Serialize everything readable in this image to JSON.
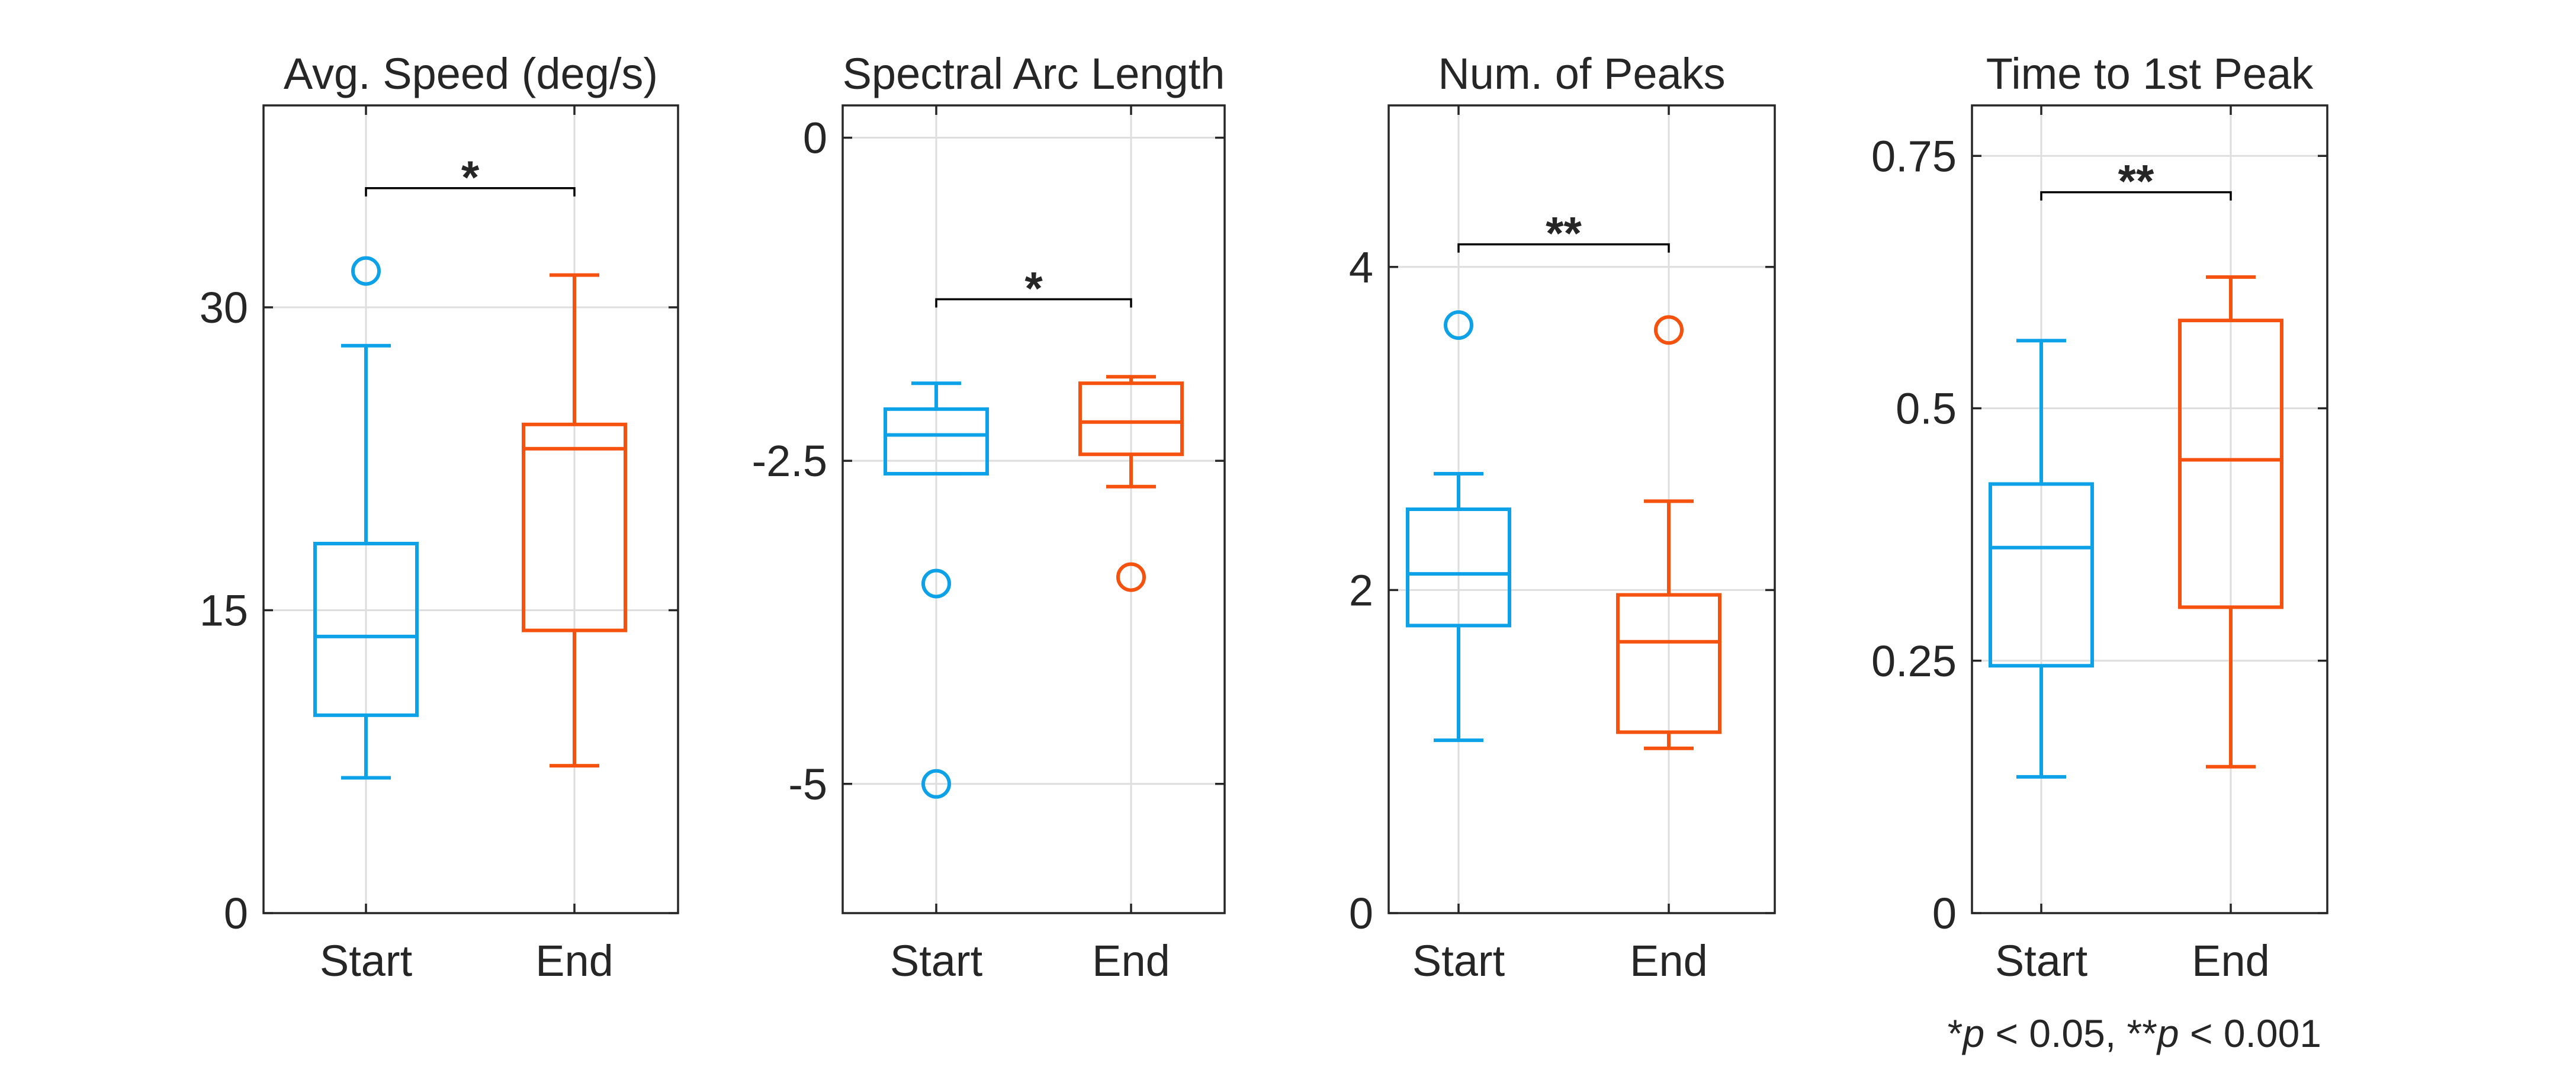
{
  "colors": {
    "start": "#0DA2E8",
    "end": "#F5520F",
    "axis": "#262626",
    "grid": "#DEDEDE"
  },
  "footnote": {
    "star1": "*",
    "p1": "p",
    "rest1": " < 0.05, ",
    "star2": "**",
    "p2": "p",
    "rest2": " < 0.001"
  },
  "chart_data": [
    {
      "type": "box",
      "title": "Avg. Speed (deg/s)",
      "categories": [
        "Start",
        "End"
      ],
      "ylim": [
        0,
        40
      ],
      "yticks": [
        0,
        15,
        30
      ],
      "ytick_labels": [
        "0",
        "15",
        "30"
      ],
      "grid": true,
      "boxes": [
        {
          "category": "Start",
          "whisker_low": 6.7,
          "q1": 9.8,
          "median": 13.7,
          "q3": 18.3,
          "whisker_high": 28.1,
          "outliers": [
            31.8
          ]
        },
        {
          "category": "End",
          "whisker_low": 7.3,
          "q1": 14.0,
          "median": 23.0,
          "q3": 24.2,
          "whisker_high": 31.6,
          "outliers": []
        }
      ],
      "significance": {
        "label": "*",
        "y": 35.9
      }
    },
    {
      "type": "box",
      "title": "Spectral Arc Length",
      "categories": [
        "Start",
        "End"
      ],
      "ylim": [
        -6,
        0.25
      ],
      "yticks": [
        -5,
        -2.5,
        0
      ],
      "ytick_labels": [
        "-5",
        "-2.5",
        "0"
      ],
      "grid": true,
      "boxes": [
        {
          "category": "Start",
          "whisker_low": -2.6,
          "q1": -2.6,
          "median": -2.3,
          "q3": -2.1,
          "whisker_high": -1.9,
          "outliers": [
            -3.45,
            -5.0
          ]
        },
        {
          "category": "End",
          "whisker_low": -2.7,
          "q1": -2.45,
          "median": -2.2,
          "q3": -1.9,
          "whisker_high": -1.85,
          "outliers": [
            -3.4
          ]
        }
      ],
      "significance": {
        "label": "*",
        "y": -1.25
      }
    },
    {
      "type": "box",
      "title": "Num. of Peaks",
      "categories": [
        "Start",
        "End"
      ],
      "ylim": [
        0,
        5
      ],
      "yticks": [
        0,
        2,
        4
      ],
      "ytick_labels": [
        "0",
        "2",
        "4"
      ],
      "grid": true,
      "boxes": [
        {
          "category": "Start",
          "whisker_low": 1.07,
          "q1": 1.78,
          "median": 2.1,
          "q3": 2.5,
          "whisker_high": 2.72,
          "outliers": [
            3.64
          ]
        },
        {
          "category": "End",
          "whisker_low": 1.02,
          "q1": 1.12,
          "median": 1.68,
          "q3": 1.97,
          "whisker_high": 2.55,
          "outliers": [
            3.61
          ]
        }
      ],
      "significance": {
        "label": "**",
        "y": 4.14
      }
    },
    {
      "type": "box",
      "title": "Time to 1st Peak",
      "categories": [
        "Start",
        "End"
      ],
      "ylim": [
        0,
        0.8
      ],
      "yticks": [
        0,
        0.25,
        0.5,
        0.75
      ],
      "ytick_labels": [
        "0",
        "0.25",
        "0.5",
        "0.75"
      ],
      "grid": true,
      "boxes": [
        {
          "category": "Start",
          "whisker_low": 0.135,
          "q1": 0.245,
          "median": 0.362,
          "q3": 0.425,
          "whisker_high": 0.567,
          "outliers": []
        },
        {
          "category": "End",
          "whisker_low": 0.145,
          "q1": 0.303,
          "median": 0.449,
          "q3": 0.587,
          "whisker_high": 0.63,
          "outliers": []
        }
      ],
      "significance": {
        "label": "**",
        "y": 0.714
      }
    }
  ]
}
